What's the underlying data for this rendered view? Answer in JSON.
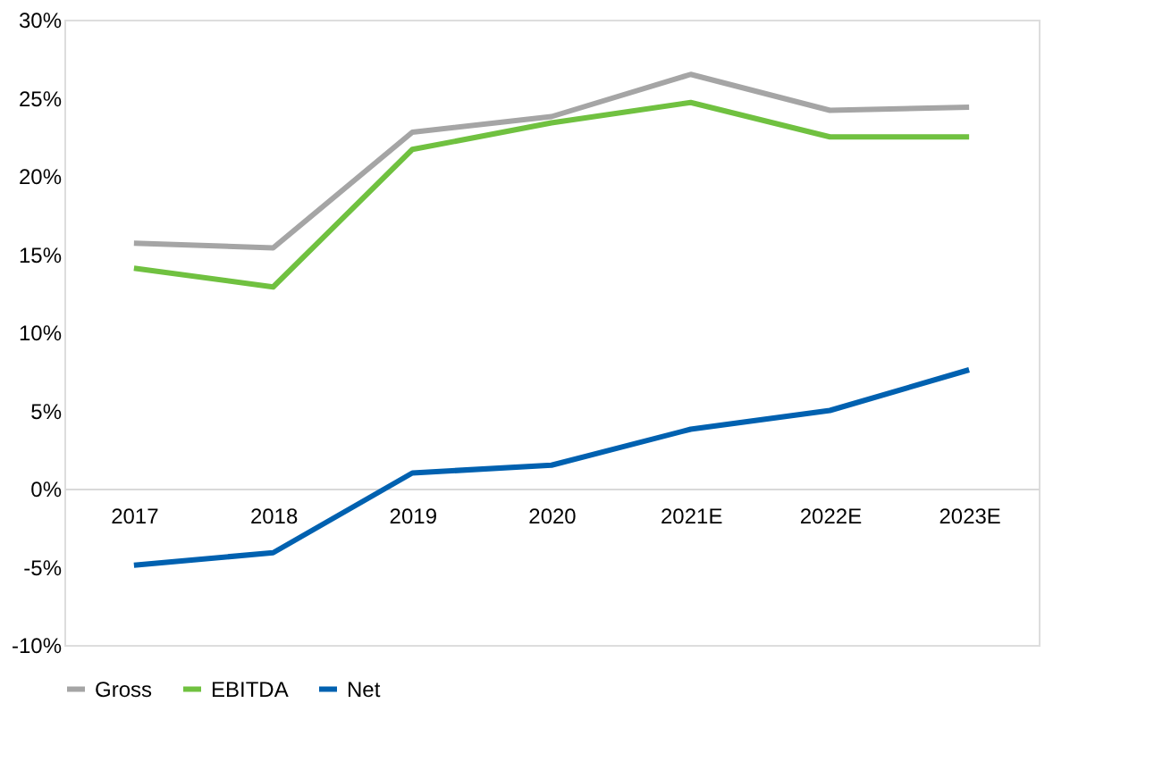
{
  "chart_data": {
    "type": "line",
    "categories": [
      "2017",
      "2018",
      "2019",
      "2020",
      "2021E",
      "2022E",
      "2023E"
    ],
    "series": [
      {
        "name": "Gross",
        "color": "#a5a5a5",
        "values": [
          15.7,
          15.4,
          22.8,
          23.8,
          26.5,
          24.2,
          24.4
        ]
      },
      {
        "name": "EBITDA",
        "color": "#70c140",
        "values": [
          14.1,
          12.9,
          21.7,
          23.4,
          24.7,
          22.5,
          22.5
        ]
      },
      {
        "name": "Net",
        "color": "#0061b0",
        "values": [
          -4.9,
          -4.1,
          1.0,
          1.5,
          3.8,
          5.0,
          7.6
        ]
      }
    ],
    "ylim": [
      -10,
      30
    ],
    "yticks": [
      {
        "value": -10,
        "label": "-10%"
      },
      {
        "value": -5,
        "label": "-5%"
      },
      {
        "value": 0,
        "label": "0%"
      },
      {
        "value": 5,
        "label": "5%"
      },
      {
        "value": 10,
        "label": "10%"
      },
      {
        "value": 15,
        "label": "15%"
      },
      {
        "value": 20,
        "label": "20%"
      },
      {
        "value": 25,
        "label": "25%"
      },
      {
        "value": 30,
        "label": "30%"
      }
    ],
    "grid": false,
    "legend": "bottom",
    "marker": "none",
    "line_style": "solid"
  }
}
